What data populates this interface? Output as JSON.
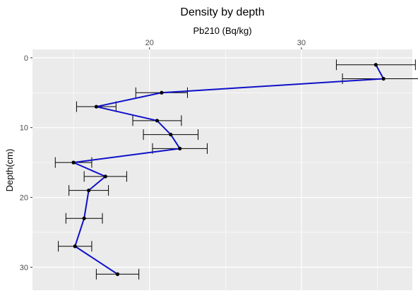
{
  "chart_data": {
    "type": "line",
    "title": "Density by depth",
    "xlabel": "Pb210 (Bq/kg)",
    "ylabel": "Depth(cm)",
    "x_axis_position": "top",
    "y_reversed": true,
    "xlim": [
      12.3,
      37.3
    ],
    "ylim": [
      -1.2,
      33.3
    ],
    "x_ticks": [
      20,
      30
    ],
    "y_ticks": [
      0,
      10,
      20,
      30
    ],
    "grid": true,
    "colors": {
      "panel": "#ebebeb",
      "grid_major": "#ffffff",
      "line": "#1010c8",
      "point": "#000000",
      "error_bar": "#000000"
    },
    "series": [
      {
        "points": [
          {
            "x": 34.9,
            "y": 1.0,
            "err": 2.6
          },
          {
            "x": 35.4,
            "y": 3.0,
            "err": 2.7
          },
          {
            "x": 20.8,
            "y": 5.0,
            "err": 1.7
          },
          {
            "x": 16.5,
            "y": 7.0,
            "err": 1.3
          },
          {
            "x": 20.5,
            "y": 9.0,
            "err": 1.6
          },
          {
            "x": 21.4,
            "y": 11.0,
            "err": 1.8
          },
          {
            "x": 22.0,
            "y": 13.0,
            "err": 1.8
          },
          {
            "x": 15.0,
            "y": 15.0,
            "err": 1.2
          },
          {
            "x": 17.1,
            "y": 17.0,
            "err": 1.4
          },
          {
            "x": 16.0,
            "y": 19.0,
            "err": 1.3
          },
          {
            "x": 15.7,
            "y": 23.0,
            "err": 1.2
          },
          {
            "x": 15.1,
            "y": 27.0,
            "err": 1.1
          },
          {
            "x": 17.9,
            "y": 31.0,
            "err": 1.4
          }
        ]
      }
    ]
  }
}
